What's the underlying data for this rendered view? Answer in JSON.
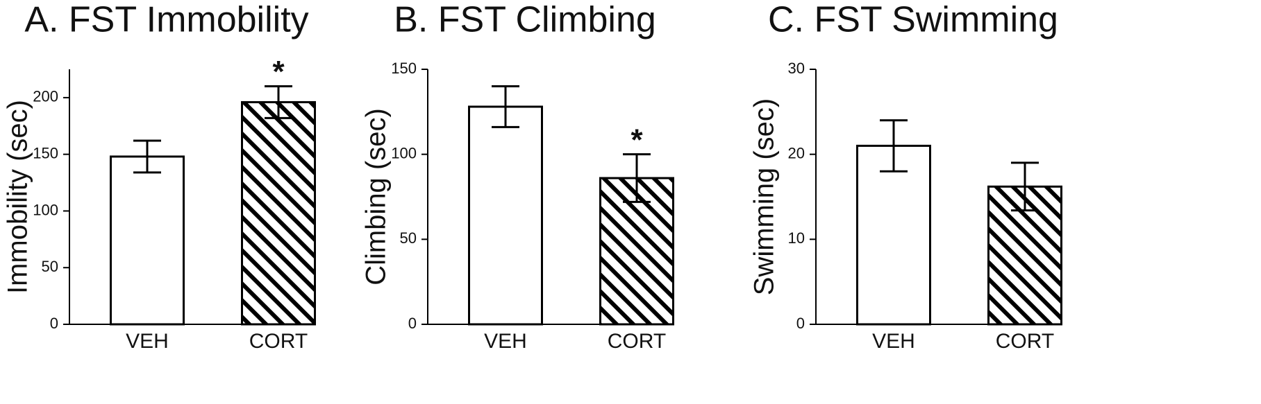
{
  "chart_data": [
    {
      "type": "bar",
      "title": "A. FST Immobility",
      "ylabel": "Immobility (sec)",
      "categories": [
        "VEH",
        "CORT"
      ],
      "values": [
        148,
        196
      ],
      "errors": [
        14,
        14
      ],
      "patterns": [
        "none",
        "hatch"
      ],
      "color": "#000000",
      "ylim": [
        0,
        225
      ],
      "yticks": [
        0,
        50,
        100,
        150,
        200
      ],
      "annotations": [
        {
          "text": "*",
          "category": "CORT"
        }
      ]
    },
    {
      "type": "bar",
      "title": "B. FST Climbing",
      "ylabel": "Climbing (sec)",
      "categories": [
        "VEH",
        "CORT"
      ],
      "values": [
        128,
        86
      ],
      "errors": [
        12,
        14
      ],
      "patterns": [
        "none",
        "hatch"
      ],
      "color": "#000000",
      "ylim": [
        0,
        150
      ],
      "yticks": [
        0,
        50,
        100,
        150
      ],
      "annotations": [
        {
          "text": "*",
          "category": "CORT"
        }
      ]
    },
    {
      "type": "bar",
      "title": "C. FST Swimming",
      "ylabel": "Swimming (sec)",
      "categories": [
        "VEH",
        "CORT"
      ],
      "values": [
        21,
        16.2
      ],
      "errors": [
        3,
        2.8
      ],
      "patterns": [
        "none",
        "hatch"
      ],
      "color": "#000000",
      "ylim": [
        0,
        30
      ],
      "yticks": [
        0,
        10,
        20,
        30
      ]
    }
  ]
}
